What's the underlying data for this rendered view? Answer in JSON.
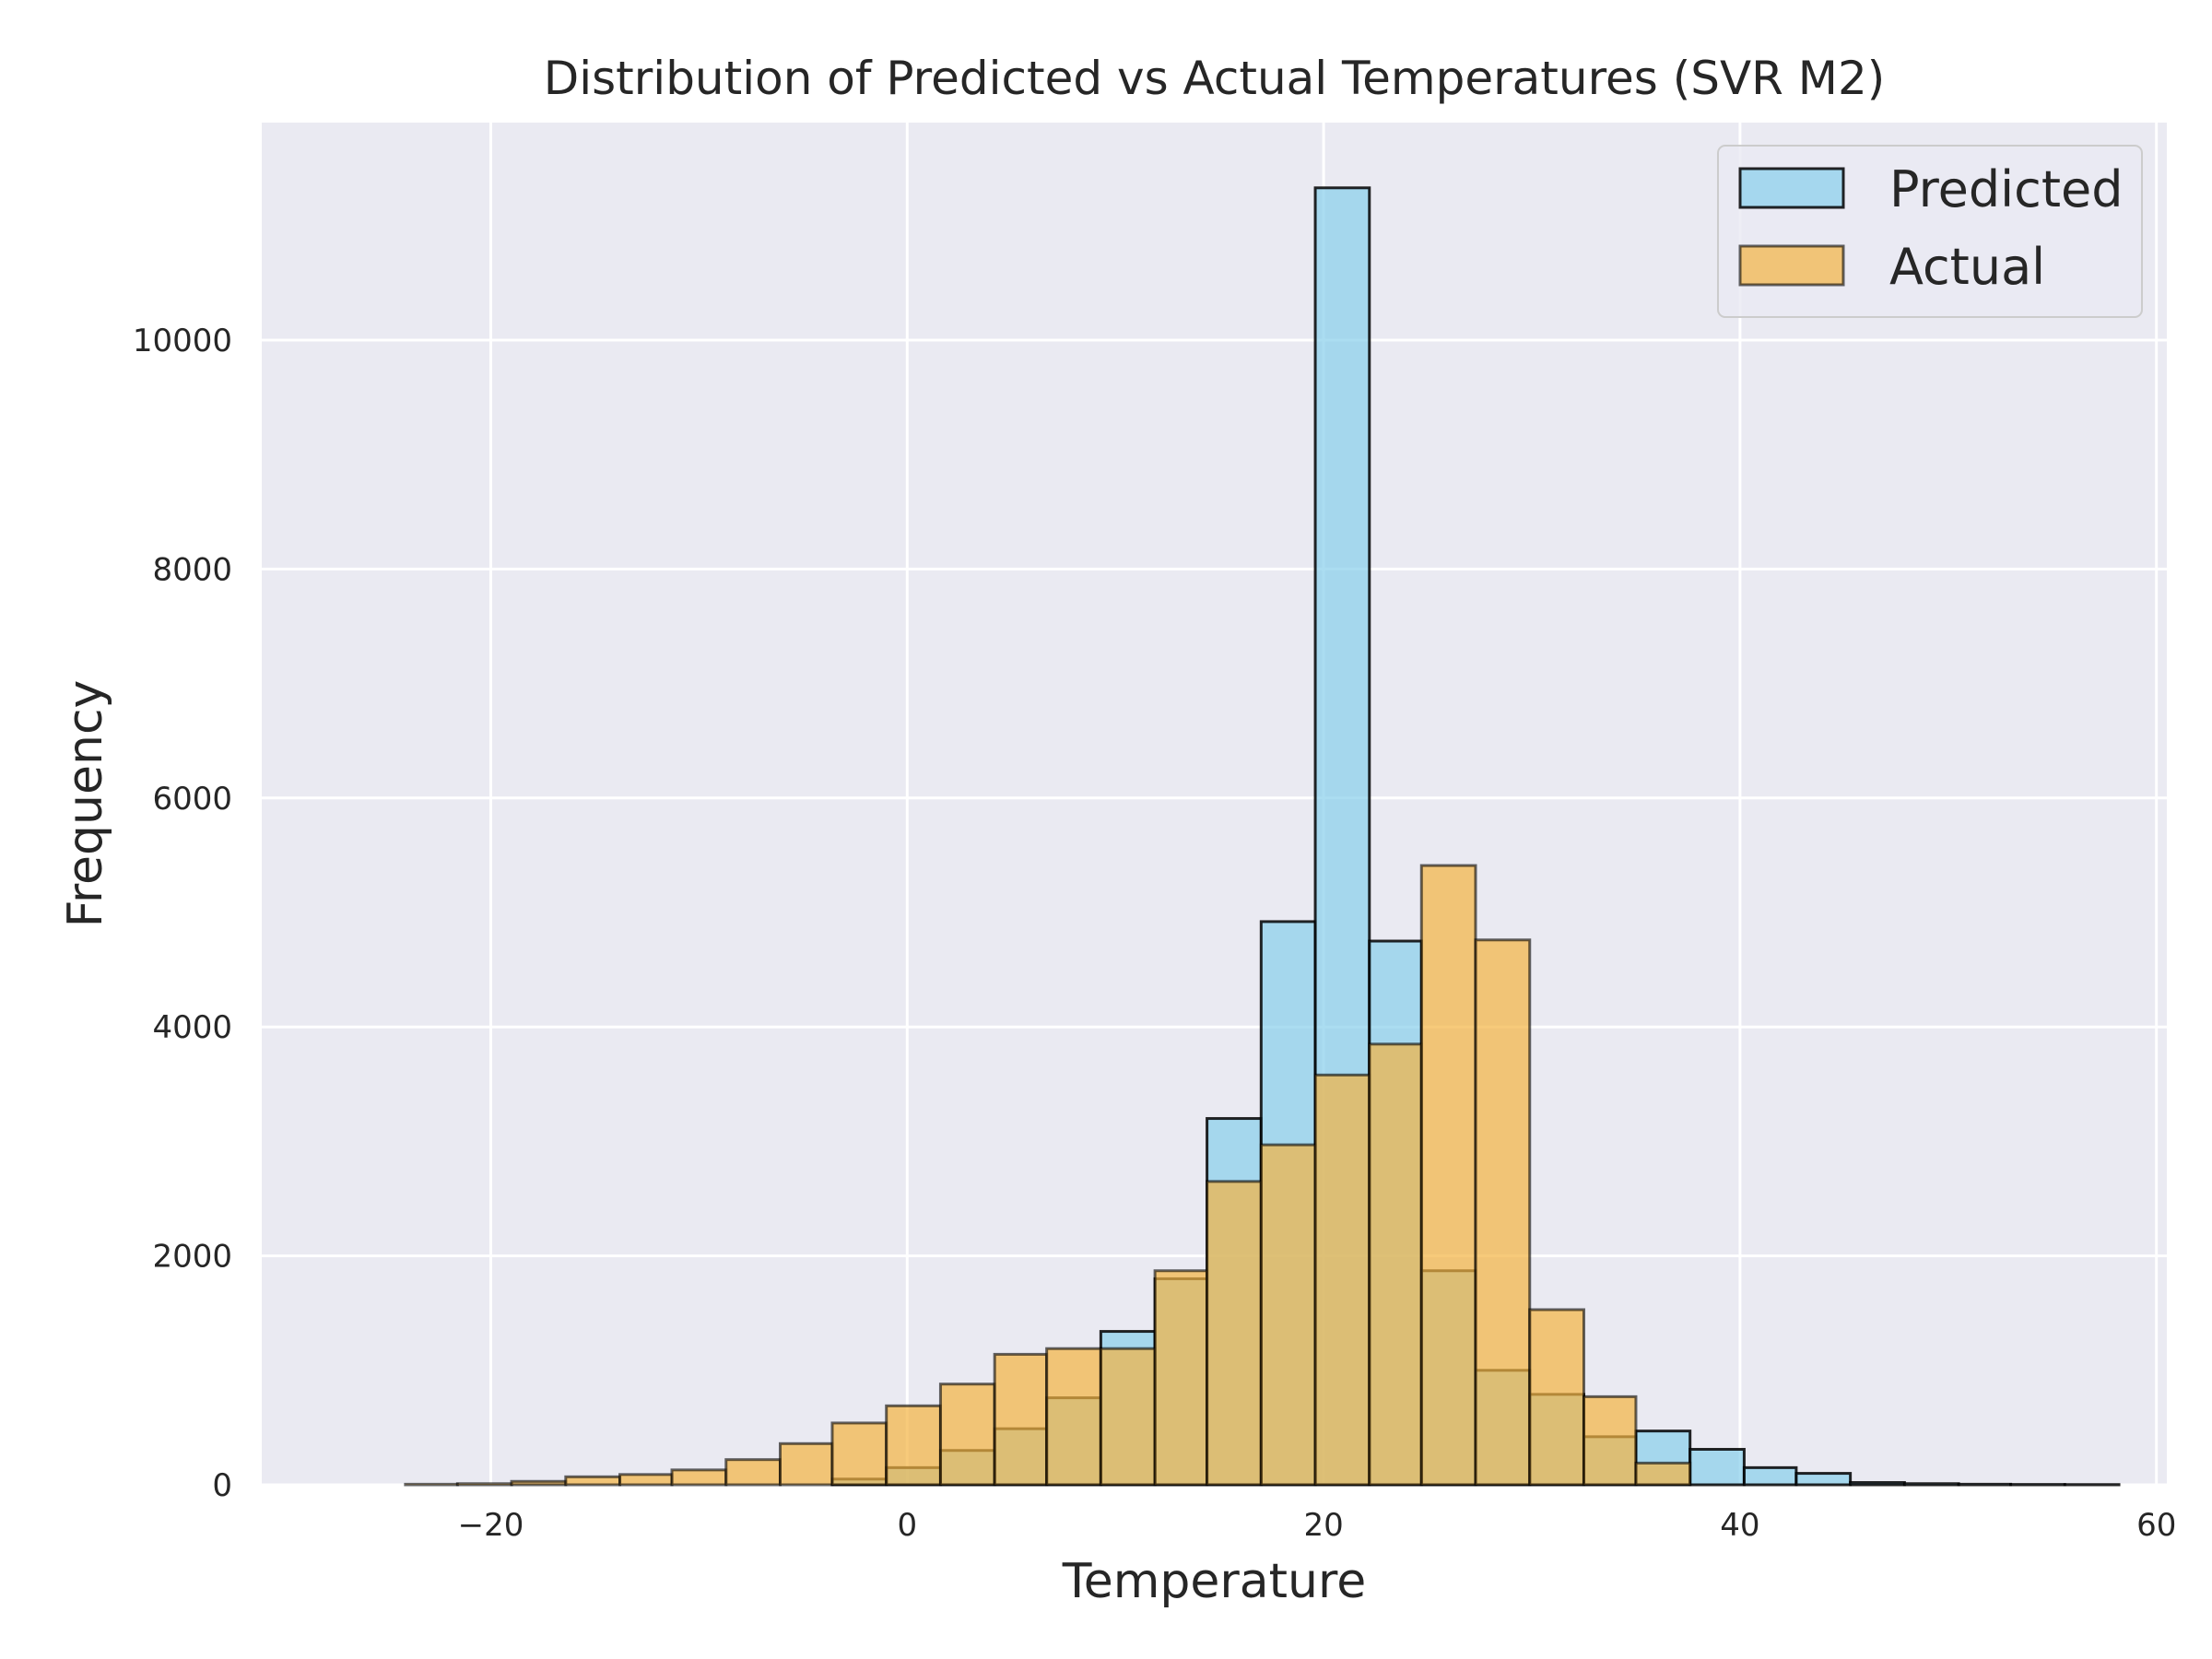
{
  "chart_data": {
    "type": "bar",
    "subtype": "histogram-overlay",
    "title": "Distribution of Predicted vs Actual Temperatures (SVR M2)",
    "xlabel": "Temperature",
    "ylabel": "Frequency",
    "xlim": [
      -31.0,
      60.5
    ],
    "ylim": [
      0,
      11900
    ],
    "xticks": [
      -20,
      0,
      20,
      40,
      60
    ],
    "xtick_labels": [
      "−20",
      "0",
      "20",
      "40",
      "60"
    ],
    "yticks": [
      0,
      2000,
      4000,
      6000,
      8000,
      10000
    ],
    "ytick_labels": [
      "0",
      "2000",
      "4000",
      "6000",
      "8000",
      "10000"
    ],
    "grid": true,
    "legend": {
      "position": "top-right",
      "labels": [
        "Predicted",
        "Actual"
      ]
    },
    "series": [
      {
        "name": "Predicted",
        "color": "#87CEEB",
        "bin_edges": [
          -26.7,
          -24.1,
          -21.6,
          -19.0,
          -16.4,
          -13.8,
          -11.3,
          -8.7,
          -6.1,
          -3.6,
          -1.0,
          1.6,
          4.2,
          6.7,
          9.3,
          11.9,
          14.4,
          17.0,
          19.6,
          22.2,
          24.7,
          27.3,
          29.9,
          32.5,
          35.0,
          37.6,
          40.2,
          42.7,
          45.3,
          47.9,
          50.5,
          53.0,
          55.6,
          58.2
        ],
        "counts": [
          0,
          0,
          0,
          0,
          0,
          0,
          0,
          0,
          0,
          50,
          150,
          300,
          490,
          760,
          1340,
          1800,
          3200,
          4920,
          11330,
          4750,
          1870,
          1000,
          790,
          420,
          470,
          310,
          150,
          100,
          20,
          10,
          5,
          3,
          2
        ]
      },
      {
        "name": "Actual",
        "color": "#F4B342",
        "bin_edges": [
          -24.1,
          -21.6,
          -19.0,
          -16.4,
          -13.8,
          -11.3,
          -8.7,
          -6.1,
          -3.6,
          -1.0,
          1.6,
          4.2,
          6.7,
          9.3,
          11.9,
          14.4,
          17.0,
          19.6,
          22.2,
          24.7,
          27.3,
          29.9,
          32.5,
          35.0,
          37.6
        ],
        "counts": [
          5,
          10,
          30,
          70,
          90,
          130,
          220,
          360,
          540,
          690,
          880,
          1140,
          1190,
          1190,
          1870,
          2650,
          2970,
          3580,
          3850,
          5410,
          4760,
          1530,
          770,
          190
        ]
      }
    ]
  }
}
